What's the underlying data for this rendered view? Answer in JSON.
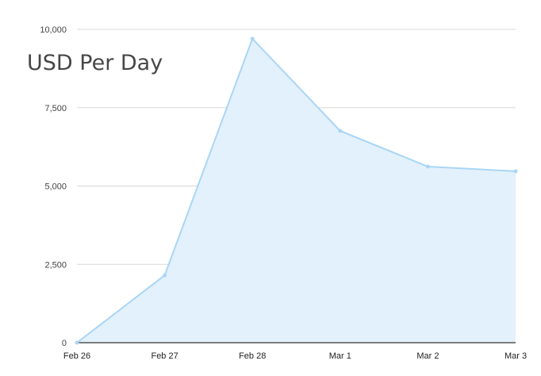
{
  "chart_data": {
    "type": "area",
    "title": "USD Per Day",
    "xlabel": "",
    "ylabel": "",
    "categories": [
      "Feb 26",
      "Feb 27",
      "Feb 28",
      "Mar 1",
      "Mar 2",
      "Mar 3"
    ],
    "series": [
      {
        "name": "USD Per Day",
        "values": [
          0,
          2150,
          9700,
          6760,
          5620,
          5470
        ]
      }
    ],
    "ylim": [
      0,
      10000
    ],
    "yticks": [
      0,
      2500,
      5000,
      7500,
      10000
    ],
    "ytick_labels": [
      "0",
      "2,500",
      "5,000",
      "7,500",
      "10,000"
    ],
    "grid": true,
    "legend": "none",
    "colors": {
      "line": "#a9d6f5",
      "fill": "#e3f1fc",
      "grid": "#d8d8d8",
      "axis": "#555555"
    }
  }
}
